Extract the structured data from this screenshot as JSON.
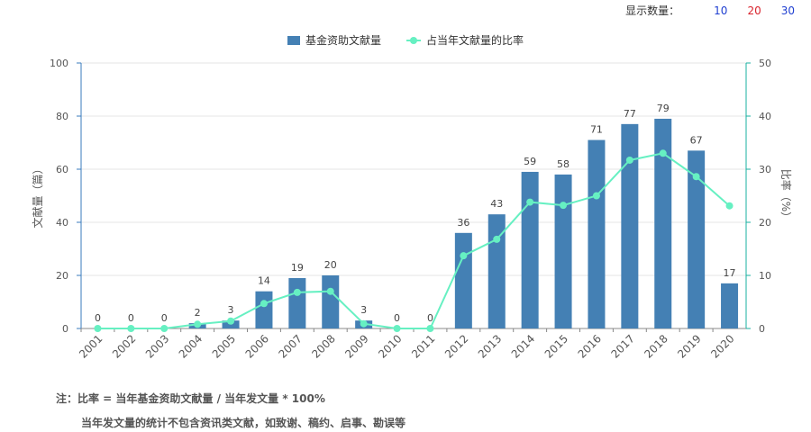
{
  "controls": {
    "display_count_label": "显示数量：",
    "options": [
      {
        "label": "10",
        "color": "#1f3fd1"
      },
      {
        "label": "20",
        "color": "#d9232d"
      },
      {
        "label": "30",
        "color": "#1f3fd1"
      }
    ]
  },
  "chart_data": {
    "type": "bar+line",
    "categories": [
      "2001",
      "2002",
      "2003",
      "2004",
      "2005",
      "2006",
      "2007",
      "2008",
      "2009",
      "2010",
      "2011",
      "2012",
      "2013",
      "2014",
      "2015",
      "2016",
      "2017",
      "2018",
      "2019",
      "2020"
    ],
    "series": [
      {
        "name": "基金资助文献量",
        "type": "bar",
        "axis": "left",
        "color": "#4480b4",
        "values": [
          0,
          0,
          0,
          2,
          3,
          14,
          19,
          20,
          3,
          0,
          0,
          36,
          43,
          59,
          58,
          71,
          77,
          79,
          67,
          17
        ]
      },
      {
        "name": "占当年文献量的比率",
        "type": "line",
        "axis": "right",
        "color": "#66f0c2",
        "values": [
          0,
          0,
          0,
          0.8,
          1.4,
          4.7,
          6.8,
          7.0,
          0.9,
          0,
          0,
          13.7,
          16.8,
          23.8,
          23.2,
          25.0,
          31.7,
          33.0,
          28.6,
          23.1
        ]
      }
    ],
    "ylabel": "文献量（篇）",
    "ylabel_right": "比率（%）",
    "ylim": [
      0,
      100
    ],
    "yticks": [
      0,
      20,
      40,
      60,
      80,
      100
    ],
    "ylim_right": [
      0,
      50
    ],
    "yticks_right": [
      0,
      10,
      20,
      30,
      40,
      50
    ],
    "grid": true,
    "legend": "top-center"
  },
  "notes": {
    "line1": "注：比率 = 当年基金资助文献量 / 当年发文量 * 100%",
    "line2": "当年发文量的统计不包含资讯类文献，如致谢、稿约、启事、勘误等"
  }
}
